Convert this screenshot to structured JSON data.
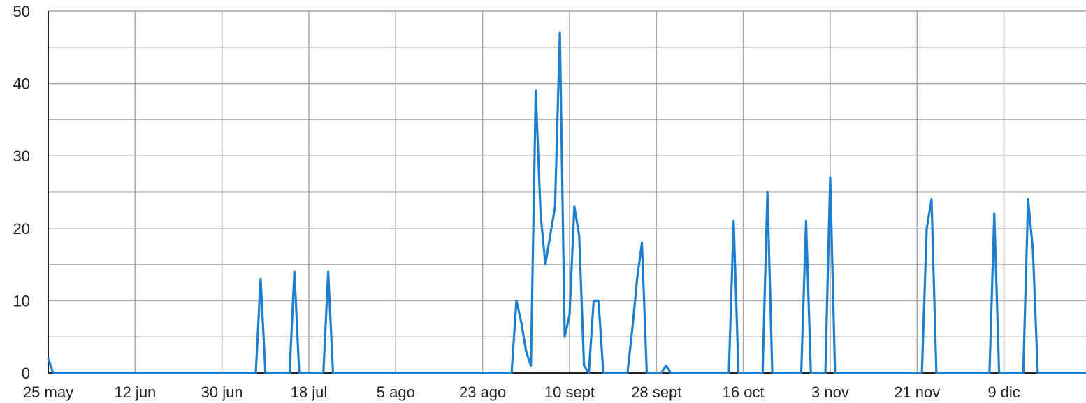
{
  "chart_data": {
    "type": "line",
    "title": "",
    "xlabel": "",
    "ylabel": "",
    "ylim": [
      0,
      50
    ],
    "yticks": [
      0,
      10,
      20,
      30,
      40,
      50
    ],
    "y_minor_step": 5,
    "xlim": [
      "2023-05-25",
      "2023-12-26"
    ],
    "xticks": [
      {
        "date": "2023-05-25",
        "label": "25 may"
      },
      {
        "date": "2023-06-12",
        "label": "12 jun"
      },
      {
        "date": "2023-06-30",
        "label": "30 jun"
      },
      {
        "date": "2023-07-18",
        "label": "18 jul"
      },
      {
        "date": "2023-08-05",
        "label": "5 ago"
      },
      {
        "date": "2023-08-23",
        "label": "23 ago"
      },
      {
        "date": "2023-09-10",
        "label": "10 sept"
      },
      {
        "date": "2023-09-28",
        "label": "28 sept"
      },
      {
        "date": "2023-10-16",
        "label": "16 oct"
      },
      {
        "date": "2023-11-03",
        "label": "3 nov"
      },
      {
        "date": "2023-11-21",
        "label": "21 nov"
      },
      {
        "date": "2023-12-09",
        "label": "9 dic"
      }
    ],
    "grid": true,
    "legend": "none",
    "color": "#1c7fcf",
    "series": [
      {
        "points": [
          [
            "2023-05-25",
            2
          ],
          [
            "2023-05-26",
            0
          ],
          [
            "2023-07-07",
            0
          ],
          [
            "2023-07-08",
            13
          ],
          [
            "2023-07-09",
            0
          ],
          [
            "2023-07-14",
            0
          ],
          [
            "2023-07-15",
            14
          ],
          [
            "2023-07-16",
            0
          ],
          [
            "2023-07-21",
            0
          ],
          [
            "2023-07-22",
            14
          ],
          [
            "2023-07-23",
            0
          ],
          [
            "2023-08-29",
            0
          ],
          [
            "2023-08-30",
            10
          ],
          [
            "2023-08-31",
            7
          ],
          [
            "2023-09-01",
            3
          ],
          [
            "2023-09-02",
            1
          ],
          [
            "2023-09-03",
            39
          ],
          [
            "2023-09-04",
            22
          ],
          [
            "2023-09-05",
            15
          ],
          [
            "2023-09-06",
            19
          ],
          [
            "2023-09-07",
            23
          ],
          [
            "2023-09-08",
            47
          ],
          [
            "2023-09-09",
            5
          ],
          [
            "2023-09-10",
            8
          ],
          [
            "2023-09-11",
            23
          ],
          [
            "2023-09-12",
            19
          ],
          [
            "2023-09-13",
            1
          ],
          [
            "2023-09-14",
            0
          ],
          [
            "2023-09-15",
            10
          ],
          [
            "2023-09-16",
            10
          ],
          [
            "2023-09-17",
            0
          ],
          [
            "2023-09-22",
            0
          ],
          [
            "2023-09-23",
            6
          ],
          [
            "2023-09-24",
            13
          ],
          [
            "2023-09-25",
            18
          ],
          [
            "2023-09-26",
            0
          ],
          [
            "2023-09-29",
            0
          ],
          [
            "2023-09-30",
            1
          ],
          [
            "2023-10-01",
            0
          ],
          [
            "2023-10-13",
            0
          ],
          [
            "2023-10-14",
            21
          ],
          [
            "2023-10-15",
            0
          ],
          [
            "2023-10-20",
            0
          ],
          [
            "2023-10-21",
            25
          ],
          [
            "2023-10-22",
            0
          ],
          [
            "2023-10-28",
            0
          ],
          [
            "2023-10-29",
            21
          ],
          [
            "2023-10-30",
            0
          ],
          [
            "2023-11-02",
            0
          ],
          [
            "2023-11-03",
            27
          ],
          [
            "2023-11-04",
            0
          ],
          [
            "2023-11-22",
            0
          ],
          [
            "2023-11-23",
            20
          ],
          [
            "2023-11-24",
            24
          ],
          [
            "2023-11-25",
            0
          ],
          [
            "2023-12-06",
            0
          ],
          [
            "2023-12-07",
            22
          ],
          [
            "2023-12-08",
            0
          ],
          [
            "2023-12-13",
            0
          ],
          [
            "2023-12-14",
            24
          ],
          [
            "2023-12-15",
            17
          ],
          [
            "2023-12-16",
            0
          ],
          [
            "2023-12-26",
            0
          ]
        ]
      }
    ]
  }
}
